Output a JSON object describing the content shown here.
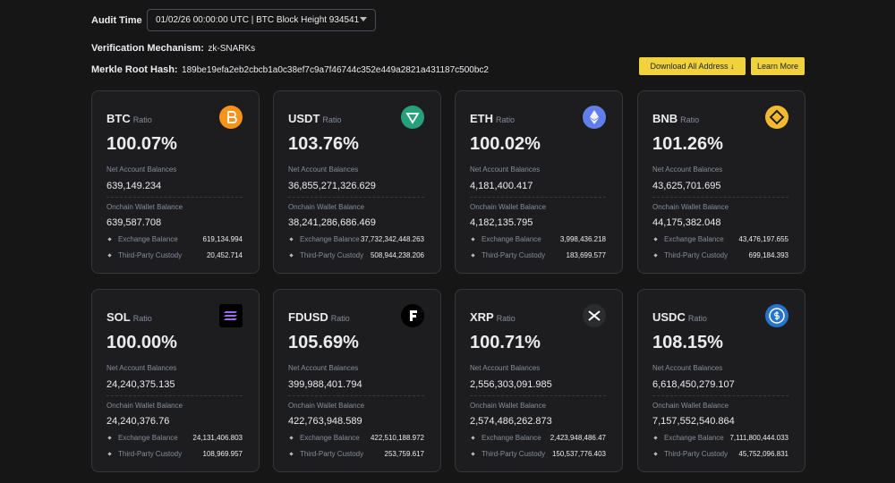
{
  "header": {
    "audit_label": "Audit Time",
    "audit_value": "01/02/26 00:00:00 UTC | BTC Block Height 934541",
    "verification_label": "Verification Mechanism:",
    "verification_value": "zk-SNARKs",
    "merkle_label": "Merkle Root Hash:",
    "merkle_value": "189be19efa2eb2cbcb1a0c38ef7c9a7f46744c352e449a2821a431187c500bc2",
    "download_button": "Download All Address ↓",
    "learn_button": "Learn More"
  },
  "cards": [
    {
      "symbol": "BTC",
      "ratio_label": "Ratio",
      "ratio": "100.07%",
      "net_label": "Net Account Balances",
      "net": "639,149.234",
      "onchain_label": "Onchain Wallet Balance",
      "onchain": "639,587.708",
      "exchange_label": "Exchange Balance",
      "exchange": "619,134.994",
      "custody_label": "Third-Party Custody",
      "custody": "20,452.714"
    },
    {
      "symbol": "USDT",
      "ratio_label": "Ratio",
      "ratio": "103.76%",
      "net_label": "Net Account Balances",
      "net": "36,855,271,326.629",
      "onchain_label": "Onchain Wallet Balance",
      "onchain": "38,241,286,686.469",
      "exchange_label": "Exchange Balance",
      "exchange": "37,732,342,448.263",
      "custody_label": "Third-Party Custody",
      "custody": "508,944,238.206"
    },
    {
      "symbol": "ETH",
      "ratio_label": "Ratio",
      "ratio": "100.02%",
      "net_label": "Net Account Balances",
      "net": "4,181,400.417",
      "onchain_label": "Onchain Wallet Balance",
      "onchain": "4,182,135.795",
      "exchange_label": "Exchange Balance",
      "exchange": "3,998,436.218",
      "custody_label": "Third-Party Custody",
      "custody": "183,699.577"
    },
    {
      "symbol": "BNB",
      "ratio_label": "Ratio",
      "ratio": "101.26%",
      "net_label": "Net Account Balances",
      "net": "43,625,701.695",
      "onchain_label": "Onchain Wallet Balance",
      "onchain": "44,175,382.048",
      "exchange_label": "Exchange Balance",
      "exchange": "43,476,197.655",
      "custody_label": "Third-Party Custody",
      "custody": "699,184.393"
    },
    {
      "symbol": "SOL",
      "ratio_label": "Ratio",
      "ratio": "100.00%",
      "net_label": "Net Account Balances",
      "net": "24,240,375.135",
      "onchain_label": "Onchain Wallet Balance",
      "onchain": "24,240,376.76",
      "exchange_label": "Exchange Balance",
      "exchange": "24,131,406.803",
      "custody_label": "Third-Party Custody",
      "custody": "108,969.957"
    },
    {
      "symbol": "FDUSD",
      "ratio_label": "Ratio",
      "ratio": "105.69%",
      "net_label": "Net Account Balances",
      "net": "399,988,401.794",
      "onchain_label": "Onchain Wallet Balance",
      "onchain": "422,763,948.589",
      "exchange_label": "Exchange Balance",
      "exchange": "422,510,188.972",
      "custody_label": "Third-Party Custody",
      "custody": "253,759.617"
    },
    {
      "symbol": "XRP",
      "ratio_label": "Ratio",
      "ratio": "100.71%",
      "net_label": "Net Account Balances",
      "net": "2,556,303,091.985",
      "onchain_label": "Onchain Wallet Balance",
      "onchain": "2,574,486,262.873",
      "exchange_label": "Exchange Balance",
      "exchange": "2,423,948,486.47",
      "custody_label": "Third-Party Custody",
      "custody": "150,537,776.403"
    },
    {
      "symbol": "USDC",
      "ratio_label": "Ratio",
      "ratio": "108.15%",
      "net_label": "Net Account Balances",
      "net": "6,618,450,279.107",
      "onchain_label": "Onchain Wallet Balance",
      "onchain": "7,157,552,540.864",
      "exchange_label": "Exchange Balance",
      "exchange": "7,111,800,444.033",
      "custody_label": "Third-Party Custody",
      "custody": "45,752,096.831"
    }
  ]
}
